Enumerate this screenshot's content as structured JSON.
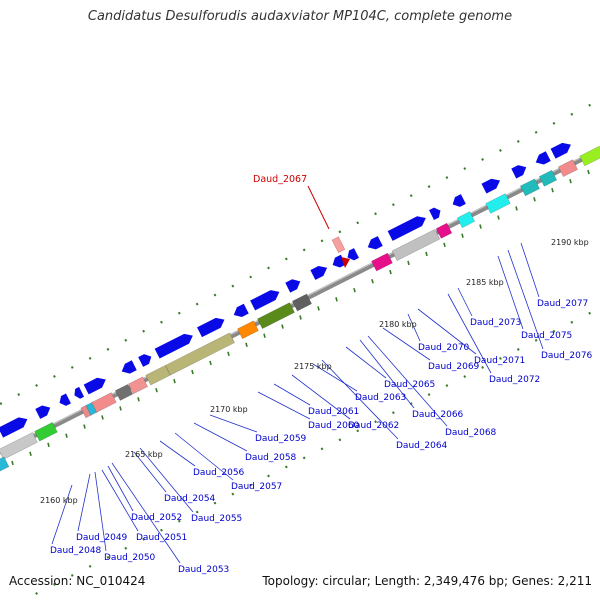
{
  "title": "Candidatus Desulforudis audaxviator MP104C, complete genome",
  "accession": "Accession: NC_010424",
  "topology_info": "Topology: circular; Length: 2,349,476 bp; Genes: 2,211",
  "highlight": {
    "label": "Daud_2067",
    "color": "#cc0000"
  },
  "colors": {
    "axis": "#8a8a8a",
    "tick": "#3a7a2a",
    "scale_text": "#222222",
    "label": "#0000cc",
    "leader": "#2233cc",
    "gene_default": "#0a0ae6"
  },
  "scale_ticks": [
    "2160 kbp",
    "2165 kbp",
    "2170 kbp",
    "2175 kbp",
    "2180 kbp",
    "2185 kbp",
    "2190 kbp"
  ],
  "gene_labels": [
    "Daud_2048",
    "Daud_2049",
    "Daud_2050",
    "Daud_2051",
    "Daud_2052",
    "Daud_2053",
    "Daud_2054",
    "Daud_2055",
    "Daud_2056",
    "Daud_2057",
    "Daud_2058",
    "Daud_2059",
    "Daud_2060",
    "Daud_2061",
    "Daud_2062",
    "Daud_2063",
    "Daud_2064",
    "Daud_2065",
    "Daud_2066",
    "Daud_2068",
    "Daud_2069",
    "Daud_2070",
    "Daud_2071",
    "Daud_2072",
    "Daud_2073",
    "Daud_2075",
    "Daud_2076",
    "Daud_2077"
  ]
}
